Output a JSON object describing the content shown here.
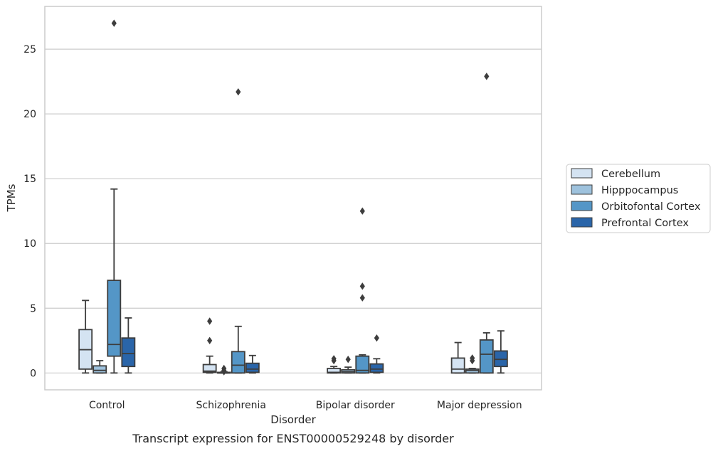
{
  "chart_data": {
    "type": "box",
    "xlabel": "Disorder",
    "ylabel": "TPMs",
    "caption": "Transcript expression for ENST00000529248 by disorder",
    "ylim": [
      -1.3,
      28.3
    ],
    "yticks": [
      0,
      5,
      10,
      15,
      20,
      25
    ],
    "grid": "horizontal",
    "legend_position": "right",
    "categories": [
      "Control",
      "Schizophrenia",
      "Bipolar disorder",
      "Major depression"
    ],
    "series": [
      {
        "name": "Cerebellum",
        "color": "#d4e3f2",
        "boxes": [
          {
            "whisker_low": 0.0,
            "q1": 0.3,
            "median": 1.8,
            "q3": 3.35,
            "whisker_high": 5.6,
            "outliers": []
          },
          {
            "whisker_low": 0.0,
            "q1": 0.05,
            "median": 0.15,
            "q3": 0.65,
            "whisker_high": 1.3,
            "outliers": [
              2.5,
              4.0
            ]
          },
          {
            "whisker_low": 0.0,
            "q1": 0.0,
            "median": 0.05,
            "q3": 0.35,
            "whisker_high": 0.5,
            "outliers": [
              0.95,
              1.1
            ]
          },
          {
            "whisker_low": 0.0,
            "q1": 0.0,
            "median": 0.3,
            "q3": 1.15,
            "whisker_high": 2.35,
            "outliers": []
          }
        ]
      },
      {
        "name": "Hipppocampus",
        "color": "#9ec2dd",
        "boxes": [
          {
            "whisker_low": 0.0,
            "q1": 0.0,
            "median": 0.2,
            "q3": 0.55,
            "whisker_high": 0.95,
            "outliers": []
          },
          {
            "whisker_low": 0.0,
            "q1": 0.0,
            "median": 0.0,
            "q3": 0.05,
            "whisker_high": 0.1,
            "outliers": [
              0.1,
              0.2,
              0.35
            ]
          },
          {
            "whisker_low": 0.0,
            "q1": 0.0,
            "median": 0.1,
            "q3": 0.25,
            "whisker_high": 0.45,
            "outliers": [
              1.05
            ]
          },
          {
            "whisker_low": 0.0,
            "q1": 0.0,
            "median": 0.2,
            "q3": 0.3,
            "whisker_high": 0.35,
            "outliers": [
              0.95,
              1.15
            ]
          }
        ]
      },
      {
        "name": "Orbitofontal Cortex",
        "color": "#5496c7",
        "boxes": [
          {
            "whisker_low": 0.0,
            "q1": 1.3,
            "median": 2.2,
            "q3": 7.15,
            "whisker_high": 14.2,
            "outliers": [
              27.0
            ]
          },
          {
            "whisker_low": 0.0,
            "q1": 0.0,
            "median": 0.6,
            "q3": 1.65,
            "whisker_high": 3.6,
            "outliers": [
              21.7
            ]
          },
          {
            "whisker_low": 0.0,
            "q1": 0.0,
            "median": 0.2,
            "q3": 1.3,
            "whisker_high": 1.4,
            "outliers": [
              5.8,
              6.7,
              12.5
            ]
          },
          {
            "whisker_low": 0.0,
            "q1": 0.0,
            "median": 1.45,
            "q3": 2.55,
            "whisker_high": 3.1,
            "outliers": [
              22.9
            ]
          }
        ]
      },
      {
        "name": "Prefrontal Cortex",
        "color": "#2a65a9",
        "boxes": [
          {
            "whisker_low": 0.0,
            "q1": 0.5,
            "median": 1.5,
            "q3": 2.7,
            "whisker_high": 4.25,
            "outliers": []
          },
          {
            "whisker_low": 0.0,
            "q1": 0.05,
            "median": 0.3,
            "q3": 0.75,
            "whisker_high": 1.35,
            "outliers": []
          },
          {
            "whisker_low": 0.0,
            "q1": 0.05,
            "median": 0.3,
            "q3": 0.7,
            "whisker_high": 1.1,
            "outliers": [
              2.7
            ]
          },
          {
            "whisker_low": 0.0,
            "q1": 0.5,
            "median": 1.05,
            "q3": 1.7,
            "whisker_high": 3.25,
            "outliers": []
          }
        ]
      }
    ]
  }
}
